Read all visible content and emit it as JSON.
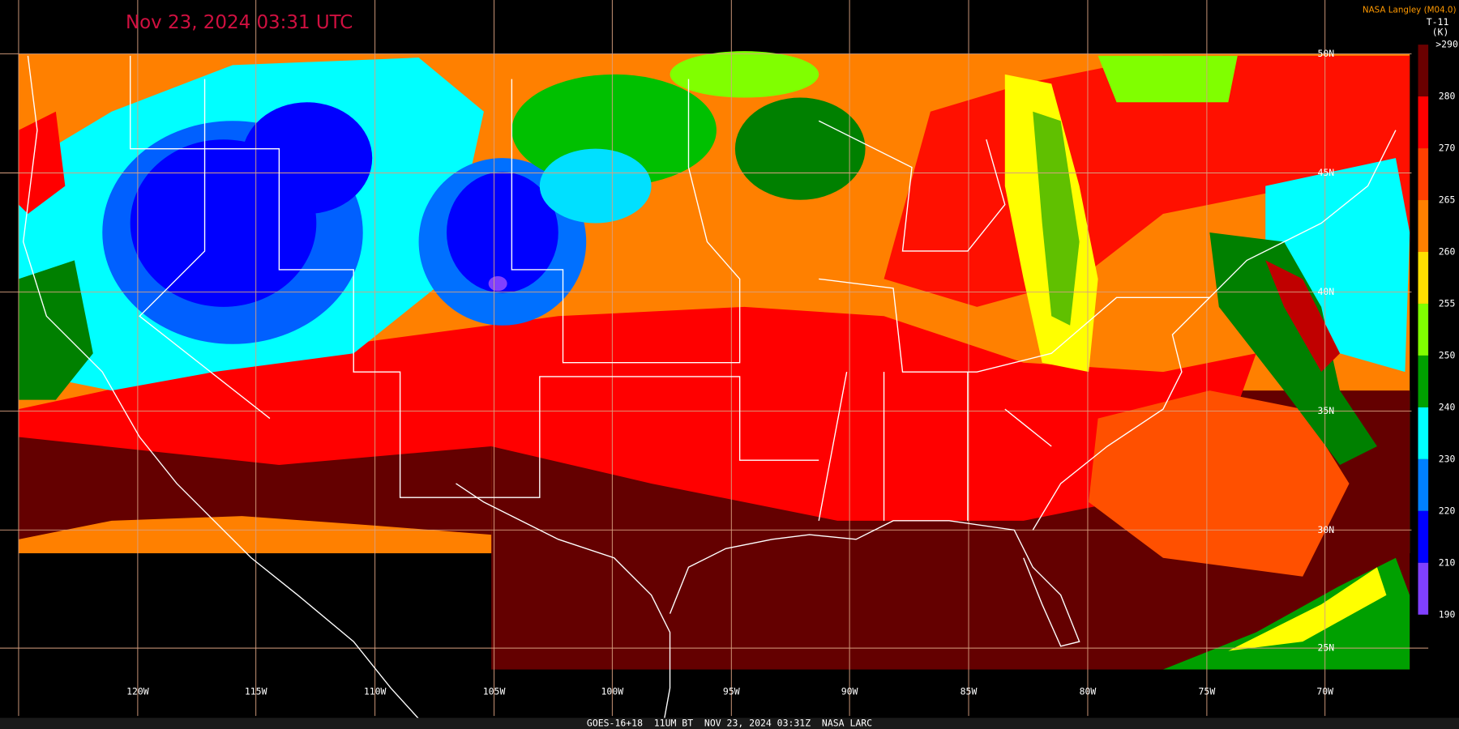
{
  "header": {
    "title": "Nov 23, 2024 03:31 UTC",
    "credit": "NASA Langley (M04.0)"
  },
  "colorbar": {
    "product": "T-11",
    "unit": "(K)",
    "labels": [
      ">290",
      "280",
      "270",
      "265",
      "260",
      "255",
      "250",
      "240",
      "230",
      "220",
      "210",
      "190"
    ]
  },
  "grid": {
    "longitudes": [
      "120W",
      "115W",
      "110W",
      "105W",
      "100W",
      "95W",
      "90W",
      "85W",
      "80W",
      "75W",
      "70W"
    ],
    "latitudes": [
      "50N",
      "45N",
      "40N",
      "35N",
      "30N",
      "25N"
    ]
  },
  "footer": "GOES-16+18  11UM BT  NOV 23, 2024 03:31Z  NASA LARC"
}
